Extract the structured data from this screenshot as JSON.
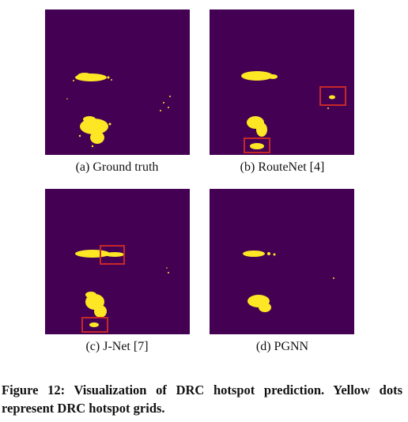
{
  "panels": [
    {
      "caption": "(a) Ground truth"
    },
    {
      "caption": "(b) RouteNet [4]"
    },
    {
      "caption": "(c) J-Net [7]"
    },
    {
      "caption": "(d) PGNN"
    }
  ],
  "figure": {
    "caption": "Figure 12: Visualization of DRC hotspot prediction. Yellow dots represent DRC hotspot grids."
  }
}
